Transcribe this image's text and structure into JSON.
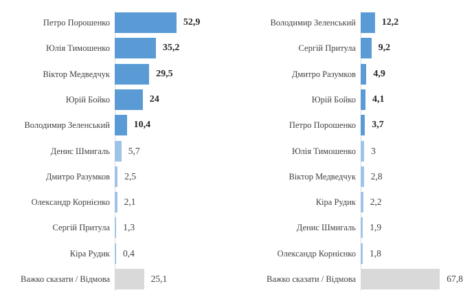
{
  "chart_data": [
    {
      "type": "bar",
      "orientation": "horizontal",
      "categories": [
        "Петро Порошенко",
        "Юлія Тимошенко",
        "Віктор Медведчук",
        "Юрій Бойко",
        "Володимир Зеленський",
        "Денис Шмигаль",
        "Дмитро Разумков",
        "Олександр Корнієнко",
        "Сергій Притула",
        "Кіра Рудик",
        "Важко сказати / Відмова"
      ],
      "values": [
        52.9,
        35.2,
        29.5,
        24,
        10.4,
        5.7,
        2.5,
        2.1,
        1.3,
        0.4,
        25.1
      ],
      "value_labels": [
        "52,9",
        "35,2",
        "29,5",
        "24",
        "10,4",
        "5,7",
        "2,5",
        "2,1",
        "1,3",
        "0,4",
        "25,1"
      ],
      "bold": [
        true,
        true,
        true,
        true,
        true,
        false,
        false,
        false,
        false,
        false,
        false
      ],
      "colors": [
        "#5b9bd5",
        "#5b9bd5",
        "#5b9bd5",
        "#5b9bd5",
        "#5b9bd5",
        "#9dc3e6",
        "#9dc3e6",
        "#9dc3e6",
        "#9dc3e6",
        "#9dc3e6",
        "#d9d9d9"
      ],
      "xlim": [
        0,
        60
      ]
    },
    {
      "type": "bar",
      "orientation": "horizontal",
      "categories": [
        "Володимир Зеленський",
        "Сергій Притула",
        "Дмитро Разумков",
        "Юрій Бойко",
        "Петро Порошенко",
        "Юлія Тимошенко",
        "Віктор Медведчук",
        "Кіра Рудик",
        "Денис Шмигаль",
        "Олександр Корнієнко",
        "Важко сказати / Відмова"
      ],
      "values": [
        12.2,
        9.2,
        4.9,
        4.1,
        3.7,
        3,
        2.8,
        2.2,
        1.9,
        1.8,
        67.8
      ],
      "value_labels": [
        "12,2",
        "9,2",
        "4,9",
        "4,1",
        "3,7",
        "3",
        "2,8",
        "2,2",
        "1,9",
        "1,8",
        "67,8"
      ],
      "bold": [
        true,
        true,
        true,
        true,
        true,
        false,
        false,
        false,
        false,
        false,
        false
      ],
      "colors": [
        "#5b9bd5",
        "#5b9bd5",
        "#5b9bd5",
        "#5b9bd5",
        "#5b9bd5",
        "#9dc3e6",
        "#9dc3e6",
        "#9dc3e6",
        "#9dc3e6",
        "#9dc3e6",
        "#d9d9d9"
      ],
      "xlim": [
        0,
        60
      ]
    }
  ]
}
